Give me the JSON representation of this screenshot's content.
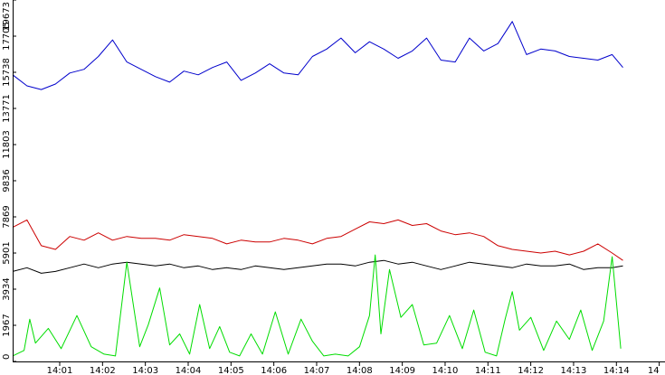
{
  "chart_data": {
    "type": "line",
    "title": "",
    "xlabel": "",
    "ylabel": "",
    "ylim": [
      0,
      19673
    ],
    "y_ticks": [
      "0",
      "1967",
      "3934",
      "5901",
      "7869",
      "9836",
      "11803",
      "13771",
      "15738",
      "17705",
      "19673"
    ],
    "x_ticks": [
      "14:01",
      "14:02",
      "14:03",
      "14:04",
      "14:05",
      "14:06",
      "14:07",
      "14:08",
      "14:09",
      "14:10",
      "14:11",
      "14:12",
      "14:13",
      "14:14",
      "14"
    ],
    "grid": false,
    "legend": "none",
    "series": [
      {
        "color": "#0000cc",
        "x": [
          "14:00:40",
          "14:01:00",
          "14:01:20",
          "14:01:40",
          "14:02:00",
          "14:02:20",
          "14:02:40",
          "14:03:00",
          "14:03:20",
          "14:03:40",
          "14:04:00",
          "14:04:20",
          "14:04:40",
          "14:05:00",
          "14:05:20",
          "14:05:40",
          "14:06:00",
          "14:06:20",
          "14:06:40",
          "14:07:00",
          "14:07:20",
          "14:07:40",
          "14:08:00",
          "14:08:20",
          "14:08:40",
          "14:09:00",
          "14:09:20",
          "14:09:40",
          "14:10:00",
          "14:10:20",
          "14:10:40",
          "14:11:00",
          "14:11:20",
          "14:11:40",
          "14:12:00",
          "14:12:20",
          "14:12:40",
          "14:13:00",
          "14:13:20",
          "14:13:40",
          "14:14:00",
          "14:14:20",
          "14:14:40",
          "14:14:55"
        ],
        "values": [
          15600,
          15000,
          14800,
          15100,
          15700,
          15900,
          16600,
          17500,
          16300,
          15900,
          15500,
          15200,
          15800,
          15600,
          16000,
          16300,
          15300,
          15700,
          16200,
          15700,
          15600,
          16600,
          17000,
          17600,
          16800,
          17400,
          17000,
          16500,
          16900,
          17600,
          16400,
          16300,
          17600,
          16900,
          17300,
          18500,
          16700,
          17000,
          16900,
          16600,
          16500,
          16400,
          16700,
          16000
        ]
      },
      {
        "color": "#cc0000",
        "x": [
          "14:00:40",
          "14:01:00",
          "14:01:20",
          "14:01:40",
          "14:02:00",
          "14:02:20",
          "14:02:40",
          "14:03:00",
          "14:03:20",
          "14:03:40",
          "14:04:00",
          "14:04:20",
          "14:04:40",
          "14:05:00",
          "14:05:20",
          "14:05:40",
          "14:06:00",
          "14:06:20",
          "14:06:40",
          "14:07:00",
          "14:07:20",
          "14:07:40",
          "14:08:00",
          "14:08:20",
          "14:08:40",
          "14:09:00",
          "14:09:20",
          "14:09:40",
          "14:10:00",
          "14:10:20",
          "14:10:40",
          "14:11:00",
          "14:11:20",
          "14:11:40",
          "14:12:00",
          "14:12:20",
          "14:12:40",
          "14:13:00",
          "14:13:20",
          "14:13:40",
          "14:14:00",
          "14:14:20",
          "14:14:40",
          "14:14:55"
        ],
        "values": [
          7300,
          7700,
          6300,
          6100,
          6800,
          6600,
          7000,
          6600,
          6800,
          6700,
          6700,
          6600,
          6900,
          6800,
          6700,
          6400,
          6600,
          6500,
          6500,
          6700,
          6600,
          6400,
          6700,
          6800,
          7200,
          7600,
          7500,
          7700,
          7400,
          7500,
          7100,
          6900,
          7000,
          6800,
          6300,
          6100,
          6000,
          5900,
          6000,
          5800,
          6000,
          6400,
          5900,
          5500
        ]
      },
      {
        "color": "#000000",
        "x": [
          "14:00:40",
          "14:01:00",
          "14:01:20",
          "14:01:40",
          "14:02:00",
          "14:02:20",
          "14:02:40",
          "14:03:00",
          "14:03:20",
          "14:03:40",
          "14:04:00",
          "14:04:20",
          "14:04:40",
          "14:05:00",
          "14:05:20",
          "14:05:40",
          "14:06:00",
          "14:06:20",
          "14:06:40",
          "14:07:00",
          "14:07:20",
          "14:07:40",
          "14:08:00",
          "14:08:20",
          "14:08:40",
          "14:09:00",
          "14:09:20",
          "14:09:40",
          "14:10:00",
          "14:10:20",
          "14:10:40",
          "14:11:00",
          "14:11:20",
          "14:11:40",
          "14:12:00",
          "14:12:20",
          "14:12:40",
          "14:13:00",
          "14:13:20",
          "14:13:40",
          "14:14:00",
          "14:14:20",
          "14:14:40",
          "14:14:55"
        ],
        "values": [
          4900,
          5100,
          4800,
          4900,
          5100,
          5300,
          5100,
          5300,
          5400,
          5300,
          5200,
          5300,
          5100,
          5200,
          5000,
          5100,
          5000,
          5200,
          5100,
          5000,
          5100,
          5200,
          5300,
          5300,
          5200,
          5400,
          5500,
          5300,
          5400,
          5200,
          5000,
          5200,
          5400,
          5300,
          5200,
          5100,
          5300,
          5200,
          5200,
          5300,
          5000,
          5100,
          5100,
          5200
        ]
      },
      {
        "color": "#00dd00",
        "x": [
          "14:00:40",
          "14:00:56",
          "14:01:04",
          "14:01:12",
          "14:01:30",
          "14:01:48",
          "14:02:10",
          "14:02:30",
          "14:02:48",
          "14:03:04",
          "14:03:20",
          "14:03:38",
          "14:03:50",
          "14:04:06",
          "14:04:20",
          "14:04:34",
          "14:04:48",
          "14:05:02",
          "14:05:16",
          "14:05:30",
          "14:05:44",
          "14:05:58",
          "14:06:14",
          "14:06:30",
          "14:06:48",
          "14:07:06",
          "14:07:24",
          "14:07:40",
          "14:07:56",
          "14:08:12",
          "14:08:30",
          "14:08:46",
          "14:09:00",
          "14:09:08",
          "14:09:16",
          "14:09:28",
          "14:09:44",
          "14:10:00",
          "14:10:16",
          "14:10:34",
          "14:10:52",
          "14:11:10",
          "14:11:26",
          "14:11:42",
          "14:11:58",
          "14:12:10",
          "14:12:20",
          "14:12:30",
          "14:12:46",
          "14:13:04",
          "14:13:22",
          "14:13:40",
          "14:13:56",
          "14:14:12",
          "14:14:28",
          "14:14:40",
          "14:14:52"
        ],
        "values": [
          300,
          600,
          2300,
          1000,
          1800,
          700,
          2500,
          800,
          400,
          300,
          5400,
          800,
          2000,
          4000,
          900,
          1500,
          400,
          3100,
          700,
          1900,
          500,
          300,
          1500,
          400,
          2700,
          400,
          2300,
          1100,
          300,
          400,
          300,
          800,
          2500,
          5800,
          1500,
          5000,
          2400,
          3100,
          900,
          1000,
          2500,
          700,
          2800,
          500,
          300,
          2300,
          3800,
          1700,
          2400,
          600,
          2200,
          1200,
          2800,
          600,
          2200,
          5700,
          700
        ]
      }
    ]
  }
}
